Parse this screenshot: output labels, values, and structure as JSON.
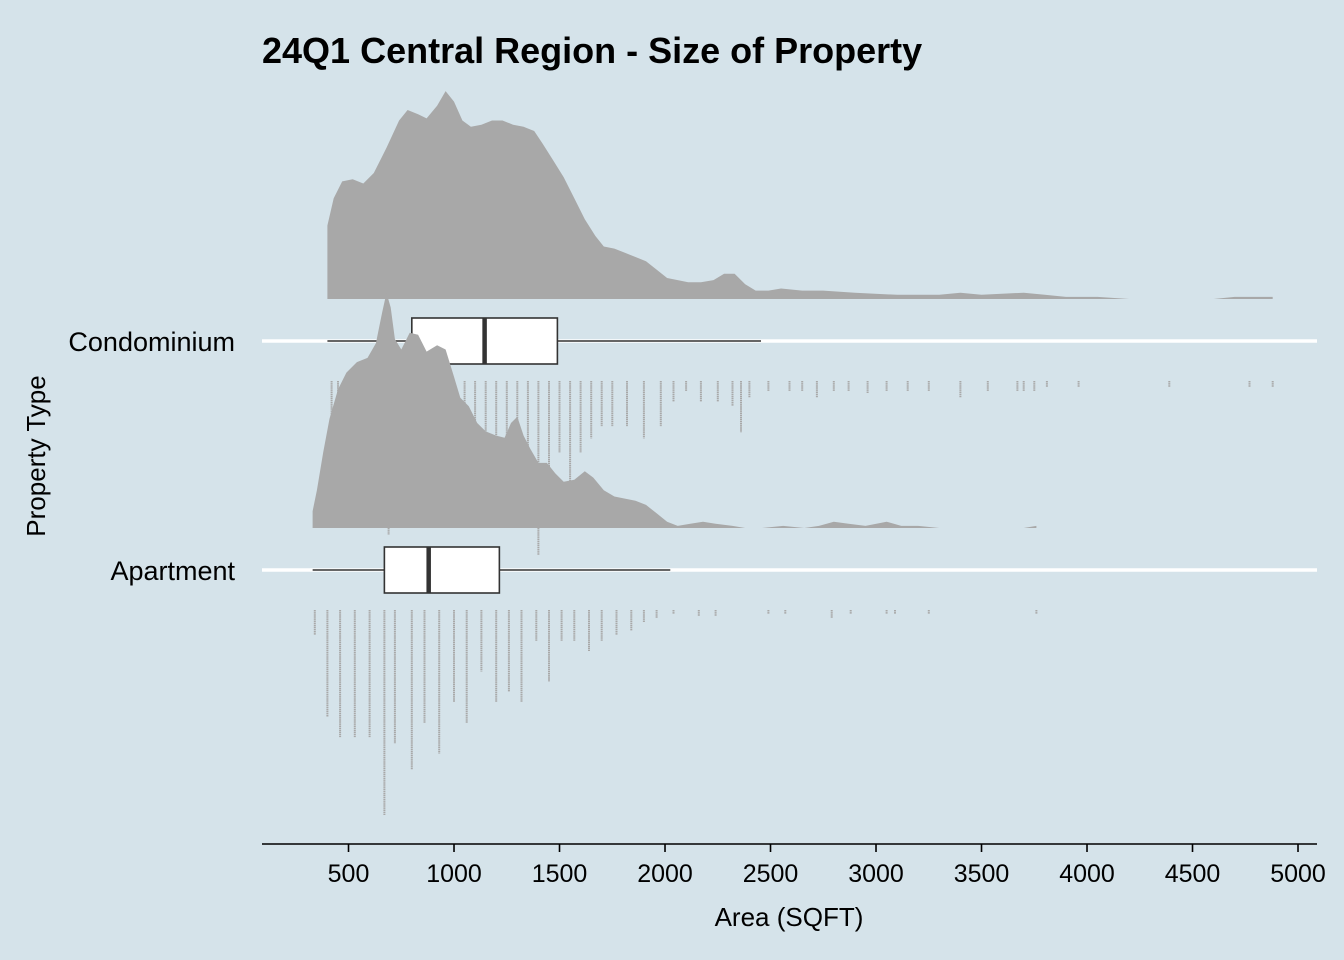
{
  "chart_data": {
    "type": "raincloud",
    "title": "24Q1 Central Region - Size of Property",
    "xlabel": "Area (SQFT)",
    "ylabel": "Property Type",
    "xlim": [
      90,
      5090
    ],
    "xticks": [
      500,
      1000,
      1500,
      2000,
      2500,
      3000,
      3500,
      4000,
      4500,
      5000
    ],
    "grid": "horizontal",
    "colors": {
      "background": "#d5e3ea",
      "density": "#a8a8a8",
      "rug": "#a8a8a8",
      "box_fill": "#ffffff",
      "box_stroke": "#333333",
      "gridline": "#ffffff"
    },
    "series": [
      {
        "name": "Condominium",
        "box": {
          "whisker_low": 400,
          "q1": 800,
          "median": 1145,
          "q3": 1490,
          "whisker_high": 2455
        },
        "density": [
          [
            400,
            0.35
          ],
          [
            430,
            0.48
          ],
          [
            470,
            0.56
          ],
          [
            520,
            0.57
          ],
          [
            570,
            0.55
          ],
          [
            620,
            0.6
          ],
          [
            680,
            0.72
          ],
          [
            740,
            0.85
          ],
          [
            780,
            0.9
          ],
          [
            830,
            0.88
          ],
          [
            870,
            0.86
          ],
          [
            920,
            0.92
          ],
          [
            960,
            0.99
          ],
          [
            1000,
            0.94
          ],
          [
            1040,
            0.85
          ],
          [
            1080,
            0.82
          ],
          [
            1130,
            0.83
          ],
          [
            1180,
            0.85
          ],
          [
            1230,
            0.85
          ],
          [
            1280,
            0.83
          ],
          [
            1330,
            0.82
          ],
          [
            1380,
            0.8
          ],
          [
            1420,
            0.74
          ],
          [
            1470,
            0.66
          ],
          [
            1520,
            0.58
          ],
          [
            1570,
            0.48
          ],
          [
            1620,
            0.38
          ],
          [
            1670,
            0.3
          ],
          [
            1710,
            0.25
          ],
          [
            1760,
            0.24
          ],
          [
            1810,
            0.22
          ],
          [
            1860,
            0.2
          ],
          [
            1910,
            0.18
          ],
          [
            1960,
            0.14
          ],
          [
            2010,
            0.1
          ],
          [
            2060,
            0.09
          ],
          [
            2110,
            0.08
          ],
          [
            2170,
            0.08
          ],
          [
            2230,
            0.09
          ],
          [
            2280,
            0.12
          ],
          [
            2330,
            0.12
          ],
          [
            2380,
            0.07
          ],
          [
            2430,
            0.04
          ],
          [
            2490,
            0.04
          ],
          [
            2550,
            0.05
          ],
          [
            2650,
            0.04
          ],
          [
            2750,
            0.04
          ],
          [
            2900,
            0.03
          ],
          [
            3100,
            0.02
          ],
          [
            3300,
            0.02
          ],
          [
            3400,
            0.03
          ],
          [
            3500,
            0.02
          ],
          [
            3700,
            0.03
          ],
          [
            3800,
            0.02
          ],
          [
            3900,
            0.01
          ],
          [
            4050,
            0.01
          ],
          [
            4200,
            0.0
          ],
          [
            4400,
            0.0
          ],
          [
            4600,
            0.0
          ],
          [
            4700,
            0.01
          ],
          [
            4880,
            0.01
          ],
          [
            4880,
            0.0
          ]
        ],
        "rug": [
          [
            420,
            0.6
          ],
          [
            450,
            0.28
          ],
          [
            480,
            0.28
          ],
          [
            510,
            0.28
          ],
          [
            550,
            0.28
          ],
          [
            600,
            0.35
          ],
          [
            640,
            0.55
          ],
          [
            690,
            0.75
          ],
          [
            760,
            0.55
          ],
          [
            800,
            0.45
          ],
          [
            850,
            0.35
          ],
          [
            900,
            0.5
          ],
          [
            940,
            0.3
          ],
          [
            1000,
            0.55
          ],
          [
            1050,
            0.45
          ],
          [
            1100,
            0.55
          ],
          [
            1150,
            0.6
          ],
          [
            1200,
            0.55
          ],
          [
            1250,
            0.45
          ],
          [
            1300,
            0.45
          ],
          [
            1350,
            0.65
          ],
          [
            1400,
            0.85
          ],
          [
            1450,
            0.45
          ],
          [
            1500,
            0.35
          ],
          [
            1550,
            0.5
          ],
          [
            1600,
            0.35
          ],
          [
            1650,
            0.28
          ],
          [
            1700,
            0.22
          ],
          [
            1750,
            0.22
          ],
          [
            1820,
            0.22
          ],
          [
            1900,
            0.28
          ],
          [
            1980,
            0.22
          ],
          [
            2040,
            0.1
          ],
          [
            2100,
            0.05
          ],
          [
            2170,
            0.1
          ],
          [
            2250,
            0.1
          ],
          [
            2320,
            0.12
          ],
          [
            2360,
            0.25
          ],
          [
            2400,
            0.08
          ],
          [
            2490,
            0.05
          ],
          [
            2590,
            0.05
          ],
          [
            2650,
            0.05
          ],
          [
            2720,
            0.08
          ],
          [
            2800,
            0.05
          ],
          [
            2870,
            0.05
          ],
          [
            2960,
            0.06
          ],
          [
            3050,
            0.05
          ],
          [
            3150,
            0.05
          ],
          [
            3250,
            0.05
          ],
          [
            3400,
            0.08
          ],
          [
            3530,
            0.05
          ],
          [
            3670,
            0.05
          ],
          [
            3700,
            0.05
          ],
          [
            3750,
            0.05
          ],
          [
            3810,
            0.03
          ],
          [
            3960,
            0.03
          ],
          [
            4390,
            0.03
          ],
          [
            4770,
            0.03
          ],
          [
            4880,
            0.03
          ]
        ]
      },
      {
        "name": "Apartment",
        "box": {
          "whisker_low": 330,
          "q1": 670,
          "median": 880,
          "q3": 1215,
          "whisker_high": 2025
        },
        "density": [
          [
            330,
            0.08
          ],
          [
            350,
            0.18
          ],
          [
            380,
            0.36
          ],
          [
            410,
            0.52
          ],
          [
            450,
            0.66
          ],
          [
            490,
            0.74
          ],
          [
            540,
            0.79
          ],
          [
            590,
            0.81
          ],
          [
            630,
            0.88
          ],
          [
            660,
            1.03
          ],
          [
            680,
            1.12
          ],
          [
            700,
            1.05
          ],
          [
            720,
            0.9
          ],
          [
            750,
            0.85
          ],
          [
            790,
            0.93
          ],
          [
            830,
            0.92
          ],
          [
            870,
            0.84
          ],
          [
            920,
            0.87
          ],
          [
            960,
            0.85
          ],
          [
            1000,
            0.72
          ],
          [
            1030,
            0.62
          ],
          [
            1070,
            0.58
          ],
          [
            1110,
            0.5
          ],
          [
            1150,
            0.46
          ],
          [
            1200,
            0.44
          ],
          [
            1240,
            0.43
          ],
          [
            1270,
            0.5
          ],
          [
            1300,
            0.53
          ],
          [
            1330,
            0.44
          ],
          [
            1360,
            0.38
          ],
          [
            1400,
            0.31
          ],
          [
            1440,
            0.31
          ],
          [
            1480,
            0.26
          ],
          [
            1520,
            0.22
          ],
          [
            1570,
            0.23
          ],
          [
            1620,
            0.27
          ],
          [
            1660,
            0.24
          ],
          [
            1710,
            0.18
          ],
          [
            1760,
            0.15
          ],
          [
            1810,
            0.14
          ],
          [
            1860,
            0.13
          ],
          [
            1910,
            0.11
          ],
          [
            1960,
            0.07
          ],
          [
            2010,
            0.03
          ],
          [
            2060,
            0.01
          ],
          [
            2120,
            0.02
          ],
          [
            2180,
            0.03
          ],
          [
            2240,
            0.02
          ],
          [
            2320,
            0.01
          ],
          [
            2380,
            0.0
          ],
          [
            2460,
            0.0
          ],
          [
            2560,
            0.01
          ],
          [
            2660,
            0.0
          ],
          [
            2730,
            0.01
          ],
          [
            2800,
            0.03
          ],
          [
            2870,
            0.02
          ],
          [
            2950,
            0.01
          ],
          [
            3050,
            0.03
          ],
          [
            3120,
            0.01
          ],
          [
            3200,
            0.01
          ],
          [
            3300,
            0.0
          ],
          [
            3500,
            0.0
          ],
          [
            3700,
            0.0
          ],
          [
            3760,
            0.01
          ],
          [
            3760,
            0.0
          ]
        ],
        "rug": [
          [
            340,
            0.12
          ],
          [
            400,
            0.52
          ],
          [
            460,
            0.62
          ],
          [
            530,
            0.62
          ],
          [
            600,
            0.62
          ],
          [
            670,
            1.0
          ],
          [
            720,
            0.65
          ],
          [
            800,
            0.78
          ],
          [
            860,
            0.55
          ],
          [
            930,
            0.7
          ],
          [
            1000,
            0.45
          ],
          [
            1060,
            0.55
          ],
          [
            1130,
            0.3
          ],
          [
            1200,
            0.45
          ],
          [
            1260,
            0.4
          ],
          [
            1320,
            0.45
          ],
          [
            1390,
            0.15
          ],
          [
            1450,
            0.35
          ],
          [
            1510,
            0.15
          ],
          [
            1570,
            0.15
          ],
          [
            1640,
            0.2
          ],
          [
            1700,
            0.15
          ],
          [
            1770,
            0.12
          ],
          [
            1840,
            0.1
          ],
          [
            1900,
            0.06
          ],
          [
            1960,
            0.04
          ],
          [
            2040,
            0.02
          ],
          [
            2160,
            0.03
          ],
          [
            2240,
            0.03
          ],
          [
            2490,
            0.02
          ],
          [
            2570,
            0.02
          ],
          [
            2790,
            0.04
          ],
          [
            2880,
            0.02
          ],
          [
            3050,
            0.02
          ],
          [
            3090,
            0.02
          ],
          [
            3250,
            0.02
          ],
          [
            3760,
            0.02
          ]
        ]
      }
    ]
  }
}
